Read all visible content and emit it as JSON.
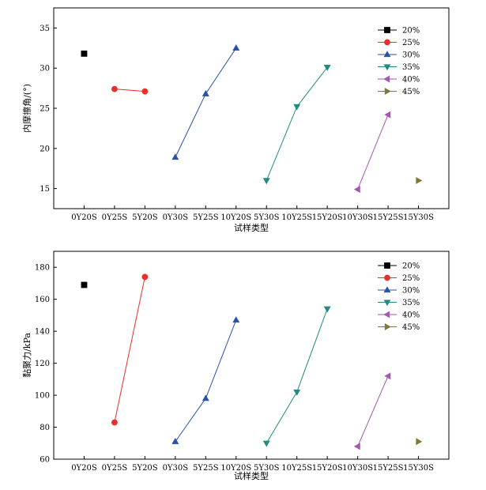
{
  "chart_data": [
    {
      "type": "line",
      "title": "",
      "xlabel": "试样类型",
      "ylabel": "内摩擦角/(°)",
      "categories": [
        "0Y20S",
        "0Y25S",
        "5Y20S",
        "0Y30S",
        "5Y25S",
        "10Y20S",
        "5Y30S",
        "10Y25S",
        "15Y20S",
        "10Y30S",
        "15Y25S",
        "15Y30S"
      ],
      "ylim": [
        12.5,
        37.5
      ],
      "yticks": [
        15,
        20,
        25,
        30,
        35
      ],
      "grid": false,
      "legend_position": "top-right",
      "series": [
        {
          "name": "20%",
          "color": "#000000",
          "marker": "square",
          "points": [
            {
              "x": "0Y20S",
              "y": 31.8
            }
          ]
        },
        {
          "name": "25%",
          "color": "#e8302a",
          "marker": "circle",
          "points": [
            {
              "x": "0Y25S",
              "y": 27.4
            },
            {
              "x": "5Y20S",
              "y": 27.1
            }
          ]
        },
        {
          "name": "30%",
          "color": "#2a52a8",
          "marker": "triangle-up",
          "points": [
            {
              "x": "0Y30S",
              "y": 18.9
            },
            {
              "x": "5Y25S",
              "y": 26.8
            },
            {
              "x": "10Y20S",
              "y": 32.5
            }
          ]
        },
        {
          "name": "35%",
          "color": "#238a80",
          "marker": "triangle-down",
          "points": [
            {
              "x": "5Y30S",
              "y": 16.0
            },
            {
              "x": "10Y25S",
              "y": 25.2
            },
            {
              "x": "15Y20S",
              "y": 30.1
            }
          ]
        },
        {
          "name": "40%",
          "color": "#a556b0",
          "marker": "triangle-left",
          "points": [
            {
              "x": "10Y30S",
              "y": 14.9
            },
            {
              "x": "15Y25S",
              "y": 24.2
            }
          ]
        },
        {
          "name": "45%",
          "color": "#807a2c",
          "marker": "triangle-right",
          "points": [
            {
              "x": "15Y30S",
              "y": 16.0
            }
          ]
        }
      ]
    },
    {
      "type": "line",
      "title": "",
      "xlabel": "试样类型",
      "ylabel": "黏聚力/kPa",
      "categories": [
        "0Y20S",
        "0Y25S",
        "5Y20S",
        "0Y30S",
        "5Y25S",
        "10Y20S",
        "5Y30S",
        "10Y25S",
        "15Y20S",
        "10Y30S",
        "15Y25S",
        "15Y30S"
      ],
      "ylim": [
        60,
        190
      ],
      "yticks": [
        60,
        80,
        100,
        120,
        140,
        160,
        180
      ],
      "grid": false,
      "legend_position": "top-right",
      "series": [
        {
          "name": "20%",
          "color": "#000000",
          "marker": "square",
          "points": [
            {
              "x": "0Y20S",
              "y": 169
            }
          ]
        },
        {
          "name": "25%",
          "color": "#e8302a",
          "marker": "circle",
          "points": [
            {
              "x": "0Y25S",
              "y": 83
            },
            {
              "x": "5Y20S",
              "y": 174
            }
          ]
        },
        {
          "name": "30%",
          "color": "#2a52a8",
          "marker": "triangle-up",
          "points": [
            {
              "x": "0Y30S",
              "y": 71
            },
            {
              "x": "5Y25S",
              "y": 98
            },
            {
              "x": "10Y20S",
              "y": 147
            }
          ]
        },
        {
          "name": "35%",
          "color": "#238a80",
          "marker": "triangle-down",
          "points": [
            {
              "x": "5Y30S",
              "y": 70
            },
            {
              "x": "10Y25S",
              "y": 102
            },
            {
              "x": "15Y20S",
              "y": 154
            }
          ]
        },
        {
          "name": "40%",
          "color": "#a556b0",
          "marker": "triangle-left",
          "points": [
            {
              "x": "10Y30S",
              "y": 68
            },
            {
              "x": "15Y25S",
              "y": 112
            }
          ]
        },
        {
          "name": "45%",
          "color": "#807a2c",
          "marker": "triangle-right",
          "points": [
            {
              "x": "15Y30S",
              "y": 71
            }
          ]
        }
      ]
    }
  ]
}
